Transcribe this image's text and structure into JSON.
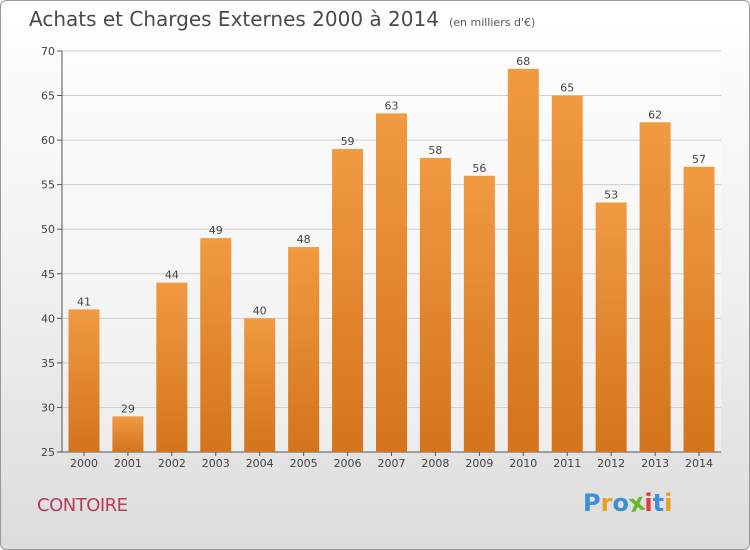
{
  "chart_data": {
    "type": "bar",
    "title": "Achats et Charges Externes 2000 à 2014",
    "subtitle": "(en milliers d'€)",
    "categories": [
      "2000",
      "2001",
      "2002",
      "2003",
      "2004",
      "2005",
      "2006",
      "2007",
      "2008",
      "2009",
      "2010",
      "2011",
      "2012",
      "2013",
      "2014"
    ],
    "values": [
      41,
      29,
      44,
      49,
      40,
      48,
      59,
      63,
      58,
      56,
      68,
      65,
      53,
      62,
      57
    ],
    "ylim": [
      25,
      70
    ],
    "yticks": [
      25,
      30,
      35,
      40,
      45,
      50,
      55,
      60,
      65,
      70
    ],
    "grid": true,
    "bar_color": "#f09a42",
    "bar_color_dark": "#d4741c"
  },
  "footer": {
    "commune": "CONTOIRE",
    "logo": [
      "P",
      "r",
      "o",
      "x",
      "i",
      "t",
      "i"
    ],
    "logo_colors": [
      "#3b8fd6",
      "#e8a020",
      "#3b8fd6",
      "#6bb52b",
      "#e03b3b",
      "#3b8fd6",
      "#e8a020"
    ]
  }
}
